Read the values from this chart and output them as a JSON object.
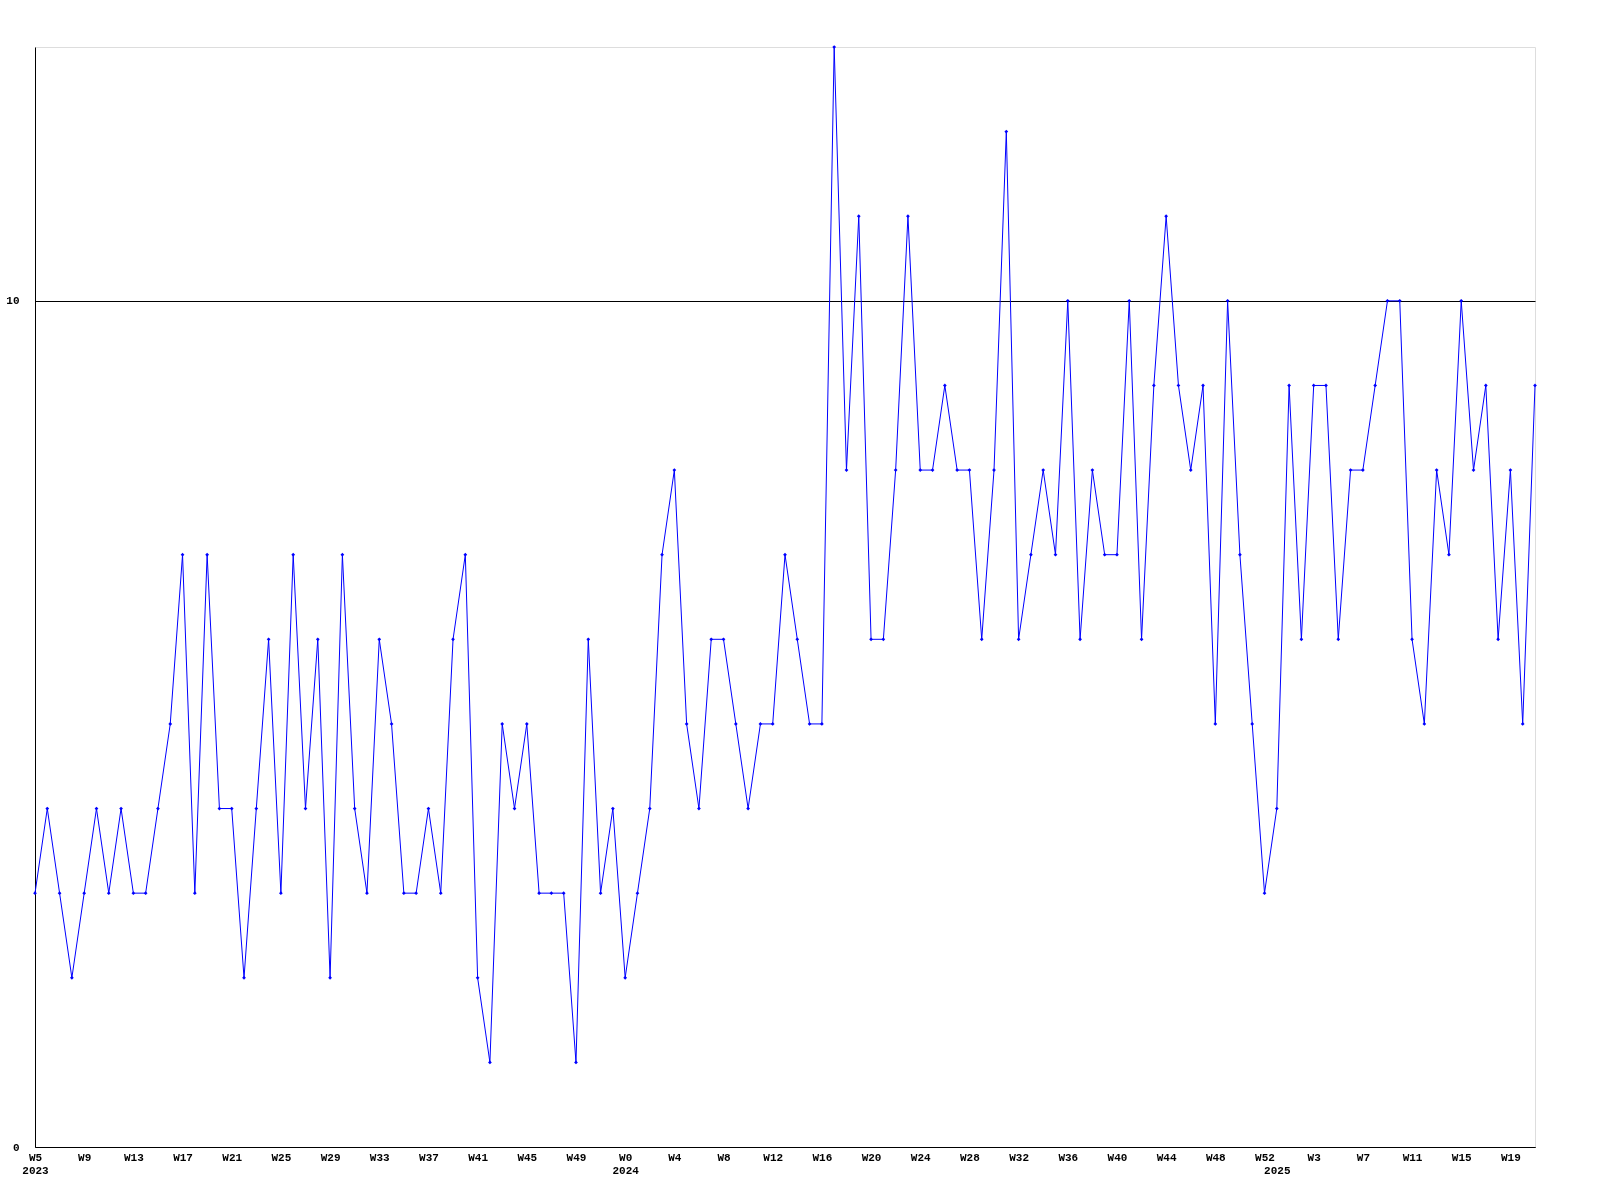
{
  "chart_data": {
    "type": "line",
    "categories": [
      "W5\n2023",
      null,
      null,
      null,
      "W9",
      null,
      null,
      null,
      "W13",
      null,
      null,
      null,
      "W17",
      null,
      null,
      null,
      "W21",
      null,
      null,
      null,
      "W25",
      null,
      null,
      null,
      "W29",
      null,
      null,
      null,
      "W33",
      null,
      null,
      null,
      "W37",
      null,
      null,
      null,
      "W41",
      null,
      null,
      null,
      "W45",
      null,
      null,
      null,
      "W49",
      null,
      null,
      null,
      "W0\n2024",
      null,
      null,
      null,
      "W4",
      null,
      null,
      null,
      "W8",
      null,
      null,
      null,
      "W12",
      null,
      null,
      null,
      "W16",
      null,
      null,
      null,
      "W20",
      null,
      null,
      null,
      "W24",
      null,
      null,
      null,
      "W28",
      null,
      null,
      null,
      "W32",
      null,
      null,
      null,
      "W36",
      null,
      null,
      null,
      "W40",
      null,
      null,
      null,
      "W44",
      null,
      null,
      null,
      "W48",
      null,
      null,
      null,
      "W52",
      "\n2025",
      null,
      null,
      "W3",
      null,
      null,
      null,
      "W7",
      null,
      null,
      null,
      "W11",
      null,
      null,
      null,
      "W15",
      null,
      null,
      null,
      "W19",
      null,
      null
    ],
    "series": [
      {
        "color": "#0000ff",
        "values": [
          3,
          4,
          3,
          2,
          3,
          4,
          3,
          4,
          3,
          3,
          4,
          5,
          7,
          3,
          7,
          4,
          4,
          2,
          4,
          6,
          3,
          7,
          4,
          6,
          2,
          7,
          4,
          3,
          6,
          5,
          3,
          3,
          4,
          3,
          6,
          7,
          2,
          1,
          5,
          4,
          5,
          3,
          3,
          3,
          1,
          6,
          3,
          4,
          2,
          3,
          4,
          7,
          8,
          5,
          4,
          6,
          6,
          5,
          4,
          5,
          5,
          7,
          6,
          5,
          5,
          13,
          8,
          11,
          6,
          6,
          8,
          11,
          8,
          8,
          9,
          8,
          8,
          6,
          8,
          12,
          6,
          7,
          8,
          7,
          10,
          6,
          8,
          7,
          7,
          10,
          6,
          9,
          11,
          9,
          8,
          9,
          5,
          10,
          7,
          5,
          3,
          4,
          9,
          6,
          9,
          9,
          6,
          8,
          8,
          9,
          10,
          10,
          6,
          5,
          8,
          7,
          10,
          8,
          9,
          6,
          8,
          5,
          9
        ]
      }
    ],
    "ylim": [
      0,
      13
    ],
    "yticks": [
      0,
      10
    ],
    "grid": "y",
    "marker": "diamond",
    "line_style": "solid"
  }
}
